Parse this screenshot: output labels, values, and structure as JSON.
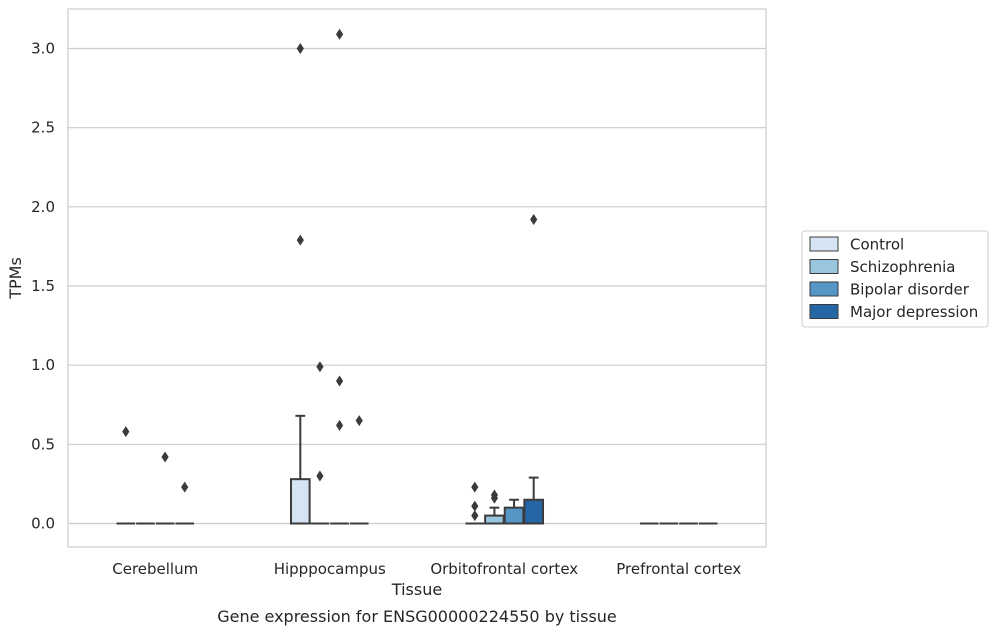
{
  "caption": "Gene expression for ENSG00000224550 by tissue",
  "chart_data": {
    "type": "boxplot",
    "xlabel": "Tissue",
    "ylabel": "TPMs",
    "ylim": [
      -0.15,
      3.25
    ],
    "yticks": [
      "0.0",
      "0.5",
      "1.0",
      "1.5",
      "2.0",
      "2.5",
      "3.0"
    ],
    "grid": "horizontal",
    "legend_position": "right",
    "categories": [
      "Cerebellum",
      "Hipppocampus",
      "Orbitofrontal cortex",
      "Prefrontal cortex"
    ],
    "series": [
      {
        "name": "Control",
        "color": "#d5e3f2"
      },
      {
        "name": "Schizophrenia",
        "color": "#99c5df"
      },
      {
        "name": "Bipolar disorder",
        "color": "#5696c7"
      },
      {
        "name": "Major depression",
        "color": "#2466a6"
      }
    ],
    "boxes": [
      [
        {
          "q1": 0,
          "median": 0,
          "q3": 0,
          "whisker_low": 0,
          "whisker_high": 0,
          "outliers": [
            0.58
          ]
        },
        {
          "q1": 0,
          "median": 0,
          "q3": 0,
          "whisker_low": 0,
          "whisker_high": 0,
          "outliers": []
        },
        {
          "q1": 0,
          "median": 0,
          "q3": 0,
          "whisker_low": 0,
          "whisker_high": 0,
          "outliers": [
            0.42
          ]
        },
        {
          "q1": 0,
          "median": 0,
          "q3": 0,
          "whisker_low": 0,
          "whisker_high": 0,
          "outliers": [
            0.23
          ]
        }
      ],
      [
        {
          "q1": 0,
          "median": 0,
          "q3": 0.28,
          "whisker_low": 0,
          "whisker_high": 0.68,
          "outliers": [
            3.0,
            1.79
          ]
        },
        {
          "q1": 0,
          "median": 0,
          "q3": 0,
          "whisker_low": 0,
          "whisker_high": 0,
          "outliers": [
            0.99,
            0.3
          ]
        },
        {
          "q1": 0,
          "median": 0,
          "q3": 0,
          "whisker_low": 0,
          "whisker_high": 0,
          "outliers": [
            3.09,
            0.9,
            0.62
          ]
        },
        {
          "q1": 0,
          "median": 0,
          "q3": 0,
          "whisker_low": 0,
          "whisker_high": 0,
          "outliers": [
            0.65
          ]
        }
      ],
      [
        {
          "q1": 0,
          "median": 0,
          "q3": 0,
          "whisker_low": 0,
          "whisker_high": 0,
          "outliers": [
            0.23,
            0.11,
            0.05
          ]
        },
        {
          "q1": 0,
          "median": 0,
          "q3": 0.05,
          "whisker_low": 0,
          "whisker_high": 0.1,
          "outliers": [
            0.18,
            0.16
          ]
        },
        {
          "q1": 0,
          "median": 0,
          "q3": 0.1,
          "whisker_low": 0,
          "whisker_high": 0.15,
          "outliers": []
        },
        {
          "q1": 0,
          "median": 0,
          "q3": 0.15,
          "whisker_low": 0,
          "whisker_high": 0.29,
          "outliers": [
            1.92
          ]
        }
      ],
      [
        {
          "q1": 0,
          "median": 0,
          "q3": 0,
          "whisker_low": 0,
          "whisker_high": 0,
          "outliers": []
        },
        {
          "q1": 0,
          "median": 0,
          "q3": 0,
          "whisker_low": 0,
          "whisker_high": 0,
          "outliers": []
        },
        {
          "q1": 0,
          "median": 0,
          "q3": 0,
          "whisker_low": 0,
          "whisker_high": 0,
          "outliers": []
        },
        {
          "q1": 0,
          "median": 0,
          "q3": 0,
          "whisker_low": 0,
          "whisker_high": 0,
          "outliers": []
        }
      ]
    ]
  }
}
